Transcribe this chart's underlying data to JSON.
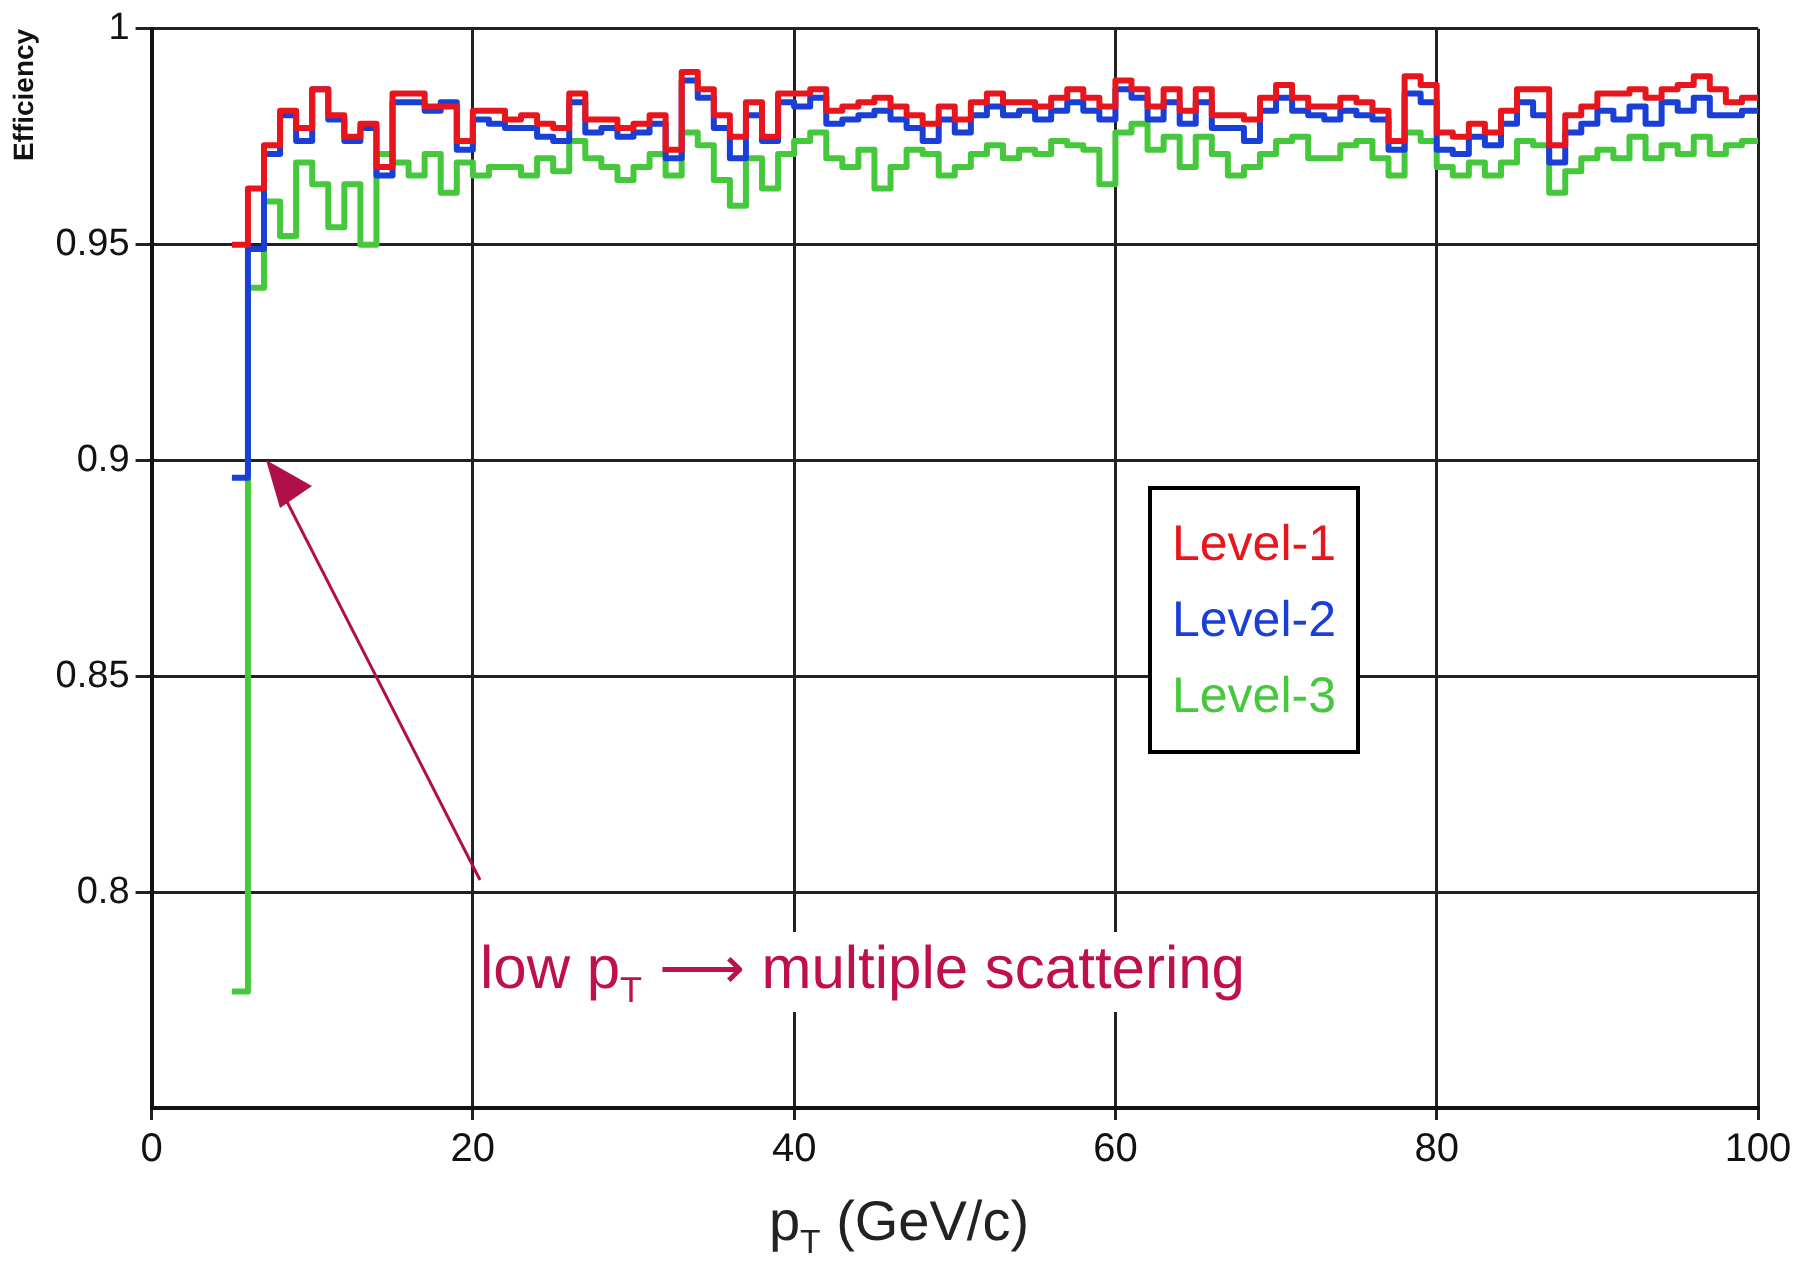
{
  "chart_data": {
    "type": "histogram",
    "ylabel": "Efficiency",
    "xlabel": "p$_{T}$ (GeV/c)",
    "annotations": [
      "low p$_{T}$ ⟶ multiple scattering"
    ],
    "bins": [
      5,
      6,
      7,
      8,
      9,
      10,
      11,
      12,
      13,
      14,
      15,
      16,
      17,
      18,
      19,
      20,
      21,
      22,
      23,
      24,
      25,
      26,
      27,
      28,
      29,
      30,
      31,
      32,
      33,
      34,
      35,
      36,
      37,
      38,
      39,
      40,
      41,
      42,
      43,
      44,
      45,
      46,
      47,
      48,
      49,
      50,
      51,
      52,
      53,
      54,
      55,
      56,
      57,
      58,
      59,
      60,
      61,
      62,
      63,
      64,
      65,
      66,
      67,
      68,
      69,
      70,
      71,
      72,
      73,
      74,
      75,
      76,
      77,
      78,
      79,
      80,
      81,
      82,
      83,
      84,
      85,
      86,
      87,
      88,
      89,
      90,
      91,
      92,
      93,
      94,
      95,
      96,
      97,
      98,
      99,
      100
    ],
    "series": [
      {
        "name": "Level-1",
        "color": "#e8161c",
        "values": [
          0.95,
          0.963,
          0.973,
          0.981,
          0.977,
          0.986,
          0.98,
          0.975,
          0.978,
          0.968,
          0.985,
          0.985,
          0.982,
          0.982,
          0.974,
          0.981,
          0.981,
          0.979,
          0.98,
          0.978,
          0.977,
          0.985,
          0.979,
          0.979,
          0.977,
          0.978,
          0.98,
          0.972,
          0.99,
          0.986,
          0.98,
          0.975,
          0.983,
          0.975,
          0.985,
          0.985,
          0.986,
          0.981,
          0.982,
          0.983,
          0.984,
          0.982,
          0.98,
          0.978,
          0.982,
          0.979,
          0.983,
          0.985,
          0.983,
          0.983,
          0.982,
          0.984,
          0.986,
          0.984,
          0.982,
          0.988,
          0.986,
          0.982,
          0.986,
          0.981,
          0.986,
          0.98,
          0.98,
          0.979,
          0.984,
          0.987,
          0.984,
          0.982,
          0.982,
          0.984,
          0.983,
          0.981,
          0.974,
          0.989,
          0.987,
          0.976,
          0.975,
          0.978,
          0.976,
          0.981,
          0.986,
          0.986,
          0.973,
          0.98,
          0.982,
          0.985,
          0.985,
          0.986,
          0.984,
          0.986,
          0.987,
          0.989,
          0.986,
          0.983,
          0.984
        ]
      },
      {
        "name": "Level-2",
        "color": "#1a3fd6",
        "values": [
          0.896,
          0.949,
          0.971,
          0.98,
          0.974,
          0.986,
          0.979,
          0.974,
          0.977,
          0.966,
          0.983,
          0.983,
          0.981,
          0.983,
          0.972,
          0.979,
          0.978,
          0.977,
          0.977,
          0.975,
          0.974,
          0.983,
          0.976,
          0.977,
          0.975,
          0.976,
          0.978,
          0.97,
          0.988,
          0.984,
          0.977,
          0.97,
          0.98,
          0.974,
          0.983,
          0.982,
          0.984,
          0.978,
          0.979,
          0.98,
          0.981,
          0.979,
          0.977,
          0.974,
          0.979,
          0.976,
          0.98,
          0.982,
          0.98,
          0.981,
          0.979,
          0.981,
          0.983,
          0.981,
          0.979,
          0.986,
          0.984,
          0.979,
          0.983,
          0.978,
          0.983,
          0.977,
          0.977,
          0.974,
          0.981,
          0.984,
          0.981,
          0.98,
          0.979,
          0.981,
          0.98,
          0.979,
          0.972,
          0.985,
          0.983,
          0.972,
          0.971,
          0.975,
          0.973,
          0.978,
          0.983,
          0.98,
          0.969,
          0.976,
          0.978,
          0.981,
          0.979,
          0.982,
          0.978,
          0.983,
          0.981,
          0.984,
          0.98,
          0.98,
          0.981
        ]
      },
      {
        "name": "Level-3",
        "color": "#46c83c",
        "values": [
          0.777,
          0.94,
          0.96,
          0.952,
          0.969,
          0.964,
          0.954,
          0.964,
          0.95,
          0.971,
          0.969,
          0.966,
          0.971,
          0.962,
          0.969,
          0.966,
          0.968,
          0.968,
          0.966,
          0.97,
          0.967,
          0.974,
          0.97,
          0.968,
          0.965,
          0.968,
          0.971,
          0.966,
          0.976,
          0.973,
          0.965,
          0.959,
          0.97,
          0.963,
          0.971,
          0.974,
          0.976,
          0.97,
          0.968,
          0.972,
          0.963,
          0.968,
          0.972,
          0.971,
          0.966,
          0.968,
          0.971,
          0.973,
          0.97,
          0.972,
          0.971,
          0.974,
          0.973,
          0.972,
          0.964,
          0.976,
          0.978,
          0.972,
          0.975,
          0.968,
          0.975,
          0.971,
          0.966,
          0.968,
          0.971,
          0.974,
          0.975,
          0.97,
          0.97,
          0.973,
          0.974,
          0.97,
          0.966,
          0.976,
          0.974,
          0.968,
          0.966,
          0.969,
          0.966,
          0.969,
          0.974,
          0.973,
          0.962,
          0.967,
          0.97,
          0.972,
          0.97,
          0.975,
          0.97,
          0.973,
          0.971,
          0.975,
          0.971,
          0.973,
          0.974
        ]
      }
    ],
    "xlim": [
      0,
      100
    ],
    "ylim": [
      0.75,
      1
    ],
    "xticks": [
      0,
      20,
      40,
      60,
      80,
      100
    ],
    "yticks": [
      0.8,
      0.85,
      0.9,
      0.95,
      1
    ],
    "grid": true,
    "legend": "right"
  }
}
